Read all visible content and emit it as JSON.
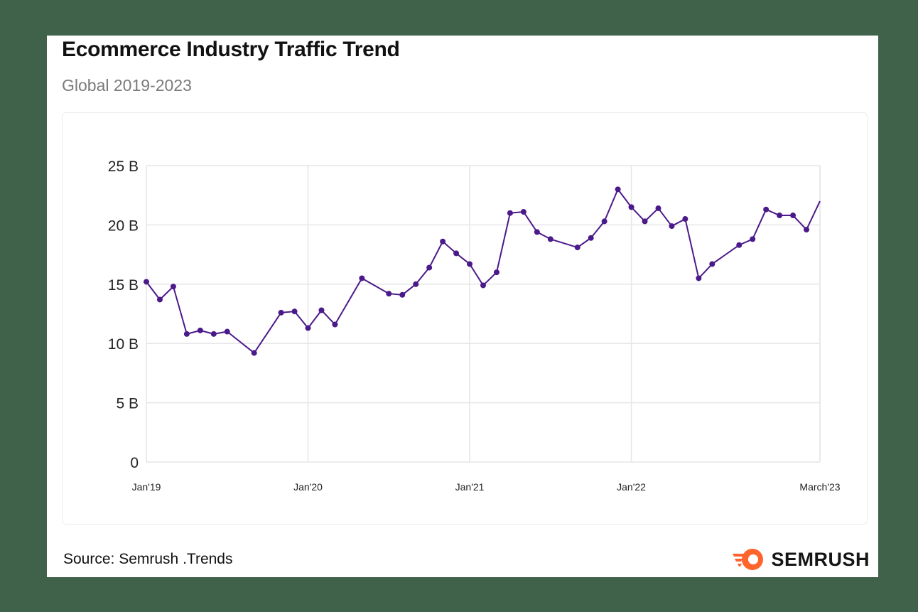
{
  "header": {
    "title": "Ecommerce Industry Traffic Trend",
    "subtitle": "Global 2019-2023"
  },
  "footer": {
    "source": "Source: Semrush .Trends",
    "brand": "SEMRUSH",
    "brand_logo_icon": "semrush-flame-icon"
  },
  "colors": {
    "line": "#4b1a8a",
    "grid": "#e6e6e6",
    "brand_orange": "#ff642d"
  },
  "chart_data": {
    "type": "line",
    "title": "Ecommerce Industry Traffic Trend",
    "subtitle": "Global 2019-2023",
    "xlabel": "",
    "ylabel": "",
    "ylim": [
      0,
      25
    ],
    "y_unit": "B",
    "yticks": [
      0,
      5,
      10,
      15,
      20,
      25
    ],
    "ytick_labels": [
      "0",
      "5 B",
      "10 B",
      "15 B",
      "20 B",
      "25 B"
    ],
    "xtick_labels": [
      "Jan'19",
      "Jan'20",
      "Jan'21",
      "Jan'22",
      "March'23"
    ],
    "xtick_dates": [
      "2019-01",
      "2020-01",
      "2021-01",
      "2022-01",
      "2023-03"
    ],
    "grid": true,
    "legend": "none",
    "series": [
      {
        "x": [
          "2019-01",
          "2019-02",
          "2019-03",
          "2019-04",
          "2019-05",
          "2019-06",
          "2019-07",
          "2019-09",
          "2019-11",
          "2019-12",
          "2020-01",
          "2020-02",
          "2020-03",
          "2020-05",
          "2020-07",
          "2020-08",
          "2020-09",
          "2020-10",
          "2020-11",
          "2020-12",
          "2021-01",
          "2021-02",
          "2021-03",
          "2021-04",
          "2021-05",
          "2021-06",
          "2021-07",
          "2021-09",
          "2021-10",
          "2021-11",
          "2021-12",
          "2022-01",
          "2022-02",
          "2022-03",
          "2022-04",
          "2022-05",
          "2022-06",
          "2022-07",
          "2022-09",
          "2022-10",
          "2022-11",
          "2022-12",
          "2023-01",
          "2023-02",
          "2023-03"
        ],
        "values": [
          15.2,
          13.7,
          14.8,
          10.8,
          11.1,
          10.8,
          11.0,
          9.2,
          12.6,
          12.7,
          11.3,
          12.8,
          11.6,
          15.5,
          14.2,
          14.1,
          15.0,
          16.4,
          18.6,
          17.6,
          16.7,
          14.9,
          16.0,
          21.0,
          21.1,
          19.4,
          18.8,
          18.1,
          18.9,
          20.3,
          23.0,
          21.5,
          20.3,
          21.4,
          19.9,
          20.5,
          15.5,
          16.7,
          18.3,
          18.8,
          21.3,
          20.8,
          20.8,
          19.6,
          22.0
        ]
      }
    ]
  }
}
